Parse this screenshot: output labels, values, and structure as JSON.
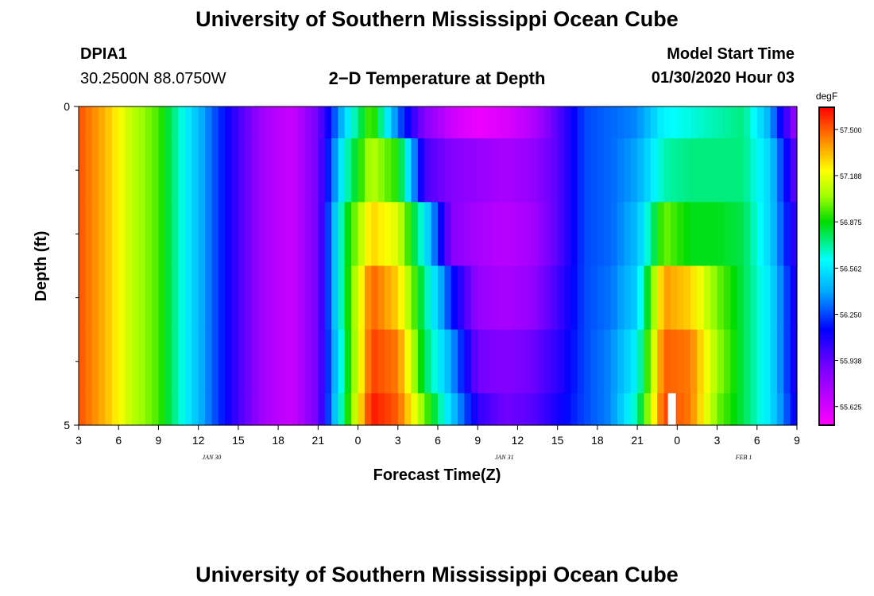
{
  "page": {
    "title_top": "University of Southern Mississippi Ocean Cube",
    "title_bottom": "University of Southern Mississippi Ocean Cube",
    "station_id": "DPIA1",
    "station_coords": "30.2500N 88.0750W",
    "plot_title": "2−D Temperature at Depth",
    "start_label": "Model Start Time",
    "start_value": "01/30/2020 Hour 03"
  },
  "chart_data": {
    "type": "heatmap",
    "title": "2−D Temperature at Depth",
    "xlabel": "Forecast Time(Z)",
    "ylabel": "Depth (ft)",
    "x_start_hour": 3,
    "x_end_hour": 57,
    "x_ticks": [
      {
        "h": 3,
        "label": "3"
      },
      {
        "h": 6,
        "label": "6"
      },
      {
        "h": 9,
        "label": "9"
      },
      {
        "h": 12,
        "label": "12"
      },
      {
        "h": 15,
        "label": "15"
      },
      {
        "h": 18,
        "label": "18"
      },
      {
        "h": 21,
        "label": "21"
      },
      {
        "h": 24,
        "label": "0"
      },
      {
        "h": 27,
        "label": "3"
      },
      {
        "h": 30,
        "label": "6"
      },
      {
        "h": 33,
        "label": "9"
      },
      {
        "h": 36,
        "label": "12"
      },
      {
        "h": 39,
        "label": "15"
      },
      {
        "h": 42,
        "label": "18"
      },
      {
        "h": 45,
        "label": "21"
      },
      {
        "h": 48,
        "label": "0"
      },
      {
        "h": 51,
        "label": "3"
      },
      {
        "h": 54,
        "label": "6"
      },
      {
        "h": 57,
        "label": "9"
      }
    ],
    "date_labels": [
      {
        "h": 13,
        "label": "JAN 30"
      },
      {
        "h": 35,
        "label": "JAN 31"
      },
      {
        "h": 53,
        "label": "FEB 1"
      }
    ],
    "y_range": [
      0,
      5
    ],
    "y_tick_labels": [
      {
        "d": 0,
        "label": "0"
      },
      {
        "d": 5,
        "label": "5"
      }
    ],
    "y_minor_ticks": [
      1,
      2,
      3,
      4
    ],
    "depth_layers": [
      [
        0,
        0.5
      ],
      [
        0.5,
        1.5
      ],
      [
        1.5,
        2.5
      ],
      [
        2.5,
        3.5
      ],
      [
        3.5,
        4.5
      ],
      [
        4.5,
        5
      ]
    ],
    "colorbar": {
      "unit": "degF",
      "min": 55.5,
      "max": 57.65,
      "tick_values": [
        57.5,
        57.188,
        56.875,
        56.562,
        56.25,
        55.938,
        55.625
      ],
      "tick_labels": [
        "57.500",
        "57.188",
        "56.875",
        "56.562",
        "56.250",
        "55.938",
        "55.625"
      ]
    },
    "missing_cells": [
      {
        "h": 47.6,
        "layer": 5
      }
    ],
    "profiles": [
      [
        57.52,
        57.52,
        57.52,
        57.52,
        57.52,
        57.52
      ],
      [
        57.35,
        57.35,
        57.35,
        57.35,
        57.35,
        57.35
      ],
      [
        57.1,
        57.1,
        57.1,
        57.1,
        57.1,
        57.1
      ],
      [
        56.95,
        56.95,
        56.95,
        56.95,
        56.95,
        56.95
      ],
      [
        56.6,
        56.6,
        56.6,
        56.6,
        56.6,
        56.6
      ],
      [
        56.3,
        56.3,
        56.3,
        56.3,
        56.3,
        56.3
      ],
      [
        56.0,
        56.0,
        56.0,
        56.0,
        56.0,
        56.0
      ],
      [
        55.75,
        55.75,
        55.75,
        55.75,
        55.75,
        55.75
      ],
      [
        55.65,
        55.65,
        55.65,
        55.65,
        55.65,
        55.65
      ],
      [
        55.9,
        55.9,
        55.9,
        55.9,
        55.9,
        55.9
      ],
      [
        56.5,
        56.65,
        56.8,
        56.8,
        56.75,
        56.8
      ],
      [
        57.0,
        57.1,
        57.3,
        57.5,
        57.55,
        57.62
      ],
      [
        56.3,
        56.9,
        57.15,
        57.3,
        57.45,
        57.5
      ],
      [
        55.85,
        56.0,
        56.6,
        56.75,
        56.8,
        57.0
      ],
      [
        55.65,
        55.85,
        55.85,
        56.2,
        56.4,
        56.5
      ],
      [
        55.55,
        55.8,
        55.75,
        55.8,
        55.9,
        56.05
      ],
      [
        55.6,
        55.75,
        55.7,
        55.75,
        55.85,
        55.9
      ],
      [
        55.7,
        55.8,
        55.75,
        55.8,
        55.9,
        55.95
      ],
      [
        55.95,
        55.95,
        55.95,
        56.0,
        56.05,
        56.1
      ],
      [
        56.25,
        56.25,
        56.25,
        56.25,
        56.25,
        56.25
      ],
      [
        56.3,
        56.3,
        56.3,
        56.32,
        56.35,
        56.35
      ],
      [
        56.35,
        56.4,
        56.45,
        56.5,
        56.6,
        56.7
      ],
      [
        56.6,
        56.7,
        57.0,
        57.4,
        57.5,
        57.55
      ],
      [
        56.65,
        56.75,
        56.85,
        57.3,
        57.45,
        57.45
      ],
      [
        56.7,
        56.75,
        56.85,
        57.0,
        57.05,
        57.0
      ],
      [
        56.75,
        56.75,
        56.8,
        56.8,
        56.8,
        56.8
      ],
      [
        56.4,
        56.5,
        56.5,
        56.55,
        56.55,
        56.55
      ],
      [
        55.75,
        55.9,
        56.0,
        56.05,
        56.05,
        56.1
      ]
    ]
  }
}
